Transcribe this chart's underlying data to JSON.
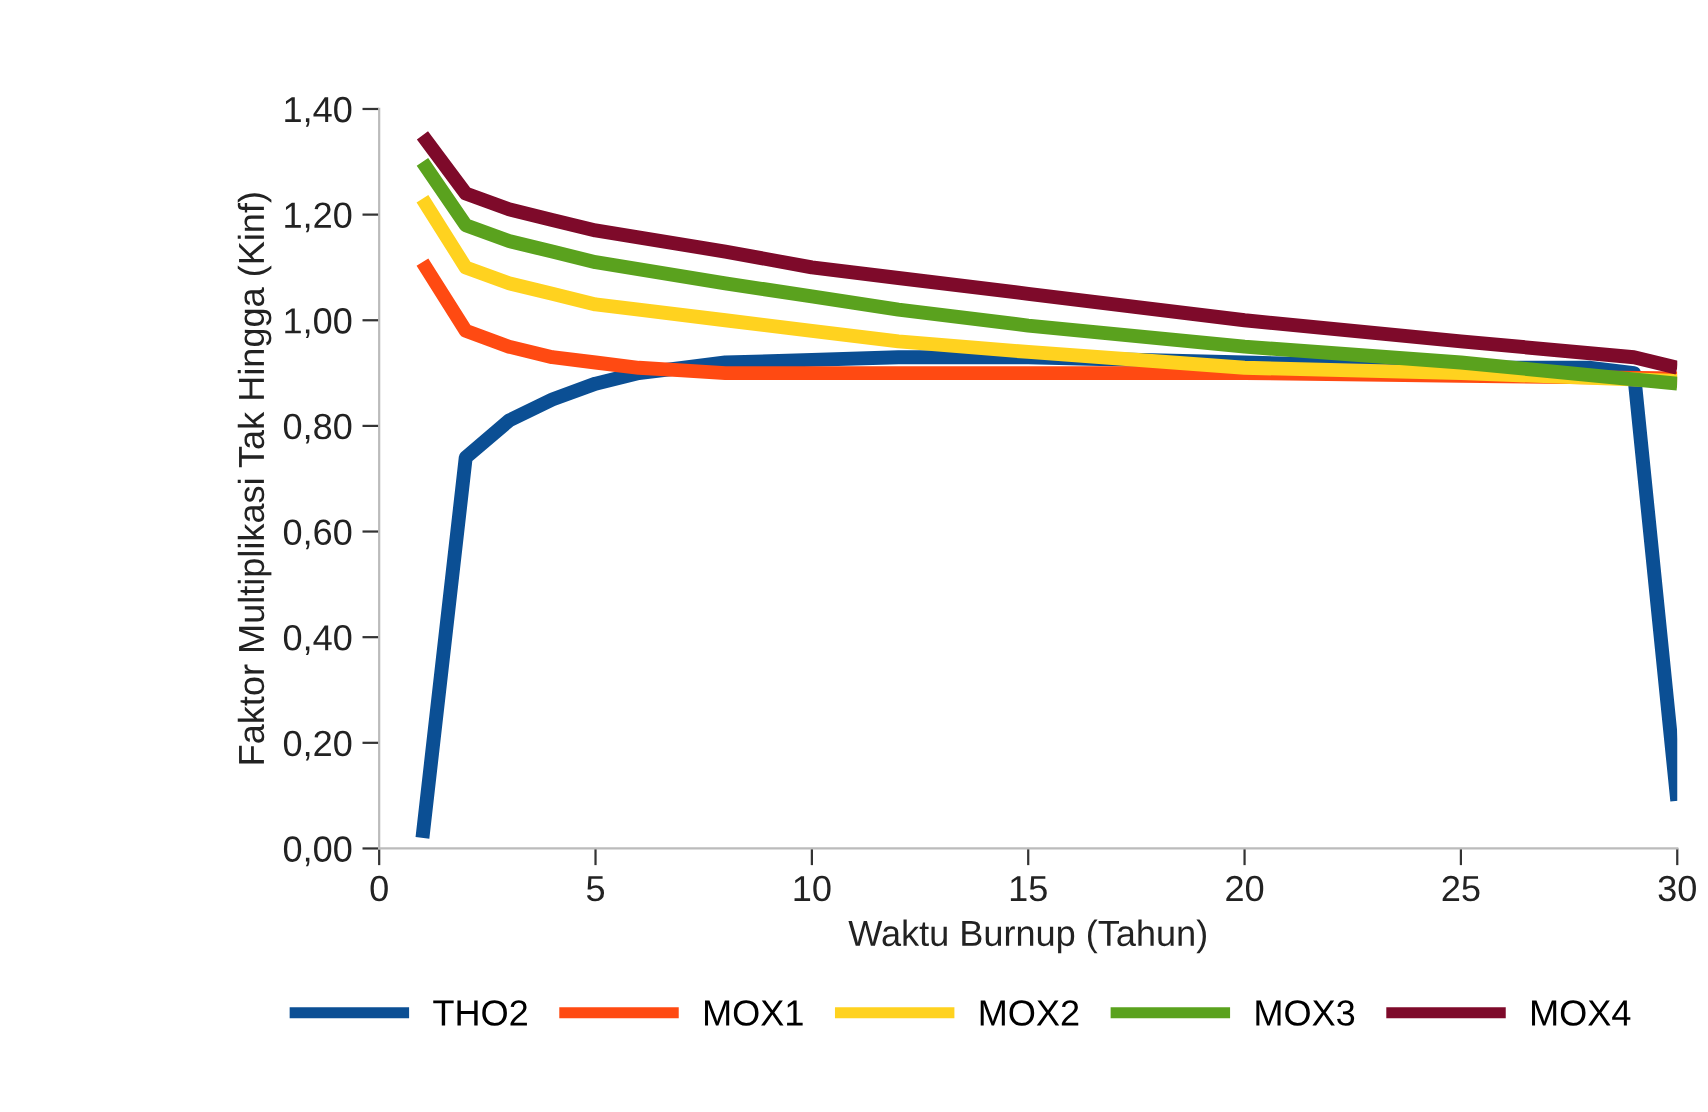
{
  "chart_data": {
    "type": "line",
    "xlabel": "Waktu Burnup (Tahun)",
    "ylabel": "Faktor Multiplikasi Tak Hingga (Kinf)",
    "xlim": [
      0,
      30
    ],
    "xticks": [
      0,
      5,
      10,
      15,
      20,
      25,
      30
    ],
    "ylim": [
      0,
      1.4
    ],
    "yticks": [
      {
        "value": 0,
        "label": "0,00"
      },
      {
        "value": 0.2,
        "label": "0,20"
      },
      {
        "value": 0.4,
        "label": "0,40"
      },
      {
        "value": 0.6,
        "label": "0,60"
      },
      {
        "value": 0.8,
        "label": "0,80"
      },
      {
        "value": 1.0,
        "label": "1,00"
      },
      {
        "value": 1.2,
        "label": "1,20"
      },
      {
        "value": 1.4,
        "label": "1,40"
      }
    ],
    "grid": false,
    "legend": "bottom",
    "line_style": "solid",
    "series": [
      {
        "name": "THO2",
        "color": "#0b4f94",
        "x": [
          1,
          2,
          3,
          4,
          5,
          6,
          7,
          8,
          10,
          12,
          15,
          20,
          25,
          28,
          29,
          30
        ],
        "values": [
          0.02,
          0.74,
          0.81,
          0.85,
          0.88,
          0.9,
          0.91,
          0.92,
          0.925,
          0.93,
          0.93,
          0.92,
          0.91,
          0.91,
          0.9,
          0.09
        ]
      },
      {
        "name": "MOX1",
        "color": "#ff4a12",
        "x": [
          1,
          2,
          3,
          4,
          5,
          6,
          7,
          8,
          10,
          15,
          20,
          25,
          30
        ],
        "values": [
          1.11,
          0.98,
          0.95,
          0.93,
          0.92,
          0.91,
          0.905,
          0.9,
          0.9,
          0.9,
          0.9,
          0.895,
          0.89
        ]
      },
      {
        "name": "MOX2",
        "color": "#ffd21f",
        "x": [
          1,
          2,
          3,
          4,
          5,
          6,
          8,
          10,
          12,
          15,
          20,
          25,
          30
        ],
        "values": [
          1.23,
          1.1,
          1.07,
          1.05,
          1.03,
          1.02,
          1.0,
          0.98,
          0.96,
          0.94,
          0.91,
          0.9,
          0.885
        ]
      },
      {
        "name": "MOX3",
        "color": "#5aa21e",
        "x": [
          1,
          2,
          3,
          4,
          5,
          8,
          10,
          12,
          15,
          20,
          25,
          30
        ],
        "values": [
          1.3,
          1.18,
          1.15,
          1.13,
          1.11,
          1.07,
          1.045,
          1.02,
          0.99,
          0.95,
          0.92,
          0.88
        ]
      },
      {
        "name": "MOX4",
        "color": "#7e0a2a",
        "x": [
          1,
          2,
          3,
          4,
          5,
          8,
          10,
          12,
          15,
          20,
          25,
          29,
          30
        ],
        "values": [
          1.35,
          1.24,
          1.21,
          1.19,
          1.17,
          1.13,
          1.1,
          1.08,
          1.05,
          1.0,
          0.96,
          0.93,
          0.91
        ]
      }
    ]
  }
}
